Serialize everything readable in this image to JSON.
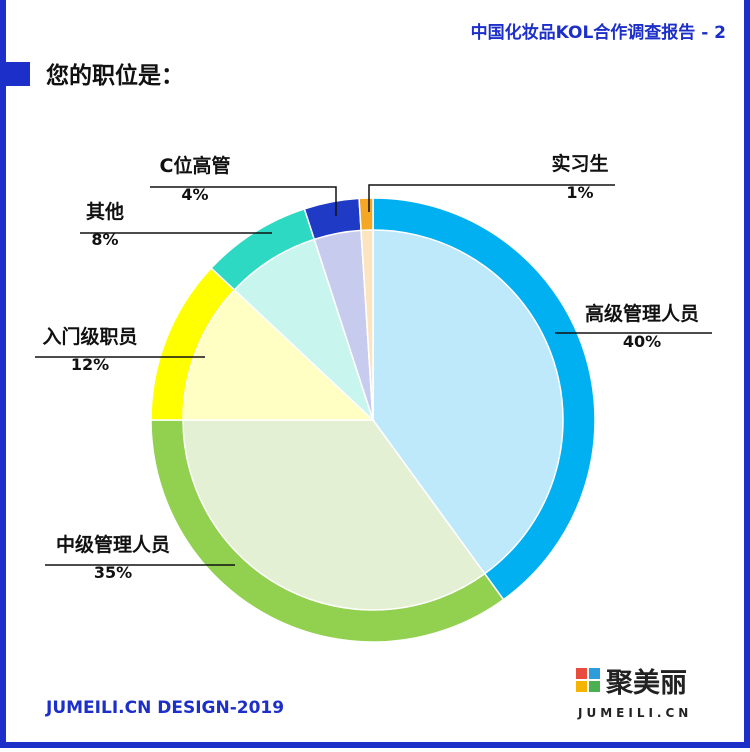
{
  "header": "中国化妆品KOL合作调查报告 - 2",
  "footer": "JUMEILI.CN DESIGN-2019",
  "logo": {
    "name": "聚美丽",
    "site": "JUMEILI.CN"
  },
  "chart_data": {
    "type": "pie",
    "title": "您的职位是：",
    "categories": [
      "高级管理人员",
      "中级管理人员",
      "入门级职员",
      "其他",
      "C位高管",
      "实习生"
    ],
    "values": [
      40,
      35,
      12,
      8,
      4,
      1
    ],
    "value_labels": [
      "40%",
      "35%",
      "12%",
      "8%",
      "4%",
      "1%"
    ],
    "colors": [
      "#00b0f0",
      "#92d050",
      "#ffff00",
      "#2ed9c3",
      "#1f3ac4",
      "#f5a623"
    ],
    "inner_colors": [
      "#bde9fb",
      "#e4f0d3",
      "#ffffc4",
      "#c8f5ee",
      "#c7cbee",
      "#fce4c0"
    ]
  }
}
